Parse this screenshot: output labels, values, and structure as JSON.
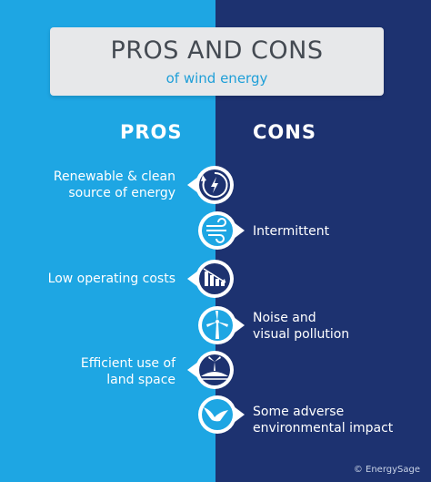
{
  "title": {
    "main": "PROS AND CONS",
    "sub": "of wind energy"
  },
  "headers": {
    "pros": "PROS",
    "cons": "CONS"
  },
  "pros": [
    {
      "lines": [
        "Renewable & clean",
        "source of energy"
      ],
      "icon": "refresh-bolt-icon"
    },
    {
      "lines": [
        "Low operating costs"
      ],
      "icon": "declining-chart-icon"
    },
    {
      "lines": [
        "Efficient use of",
        "land space"
      ],
      "icon": "turbine-on-hill-icon"
    }
  ],
  "cons": [
    {
      "lines": [
        "Intermittent"
      ],
      "icon": "wind-gust-icon"
    },
    {
      "lines": [
        "Noise and",
        "visual pollution"
      ],
      "icon": "wind-turbine-icon"
    },
    {
      "lines": [
        "Some adverse",
        "environmental impact"
      ],
      "icon": "bird-icon"
    }
  ],
  "credit": "© EnergySage",
  "colors": {
    "pros_background": "#1ea6e3",
    "cons_background": "#1d3270",
    "title_card": "#e7e8ea",
    "title_text": "#444a52",
    "subtitle_text": "#1f9fd8"
  }
}
